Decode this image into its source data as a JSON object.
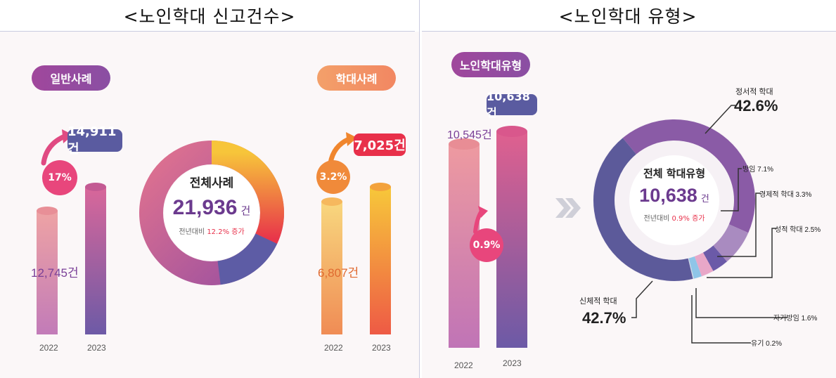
{
  "left_header": "<노인학대 신고건수>",
  "right_header": "<노인학대 유형>",
  "general": {
    "pill": "일반사례",
    "growth": "17%",
    "bar_2022_label": "12,745건",
    "bar_2023_label": "14,911건",
    "year_2022": "2022",
    "year_2023": "2023"
  },
  "abuse": {
    "pill": "학대사례",
    "growth": "3.2%",
    "bar_2022_label": "6,807건",
    "bar_2023_label": "7,025건",
    "year_2022": "2022",
    "year_2023": "2023"
  },
  "total": {
    "title": "전체사례",
    "value": "21,936",
    "unit": "건",
    "yoy_prefix": "전년대비",
    "yoy_value": "12.2% 증가"
  },
  "types_bars": {
    "pill": "노인학대유형",
    "growth": "0.9%",
    "bar_2022_label": "10,545건",
    "bar_2023_label": "10,638건",
    "year_2022": "2022",
    "year_2023": "2023"
  },
  "types_donut": {
    "title": "전체 학대유형",
    "value": "10,638",
    "unit": "건",
    "yoy_prefix": "전년대비",
    "yoy_value": "0.9% 증가"
  },
  "types_labels": {
    "emotional": "정서적 학대",
    "emotional_pct": "42.6%",
    "neglect": "방임 7.1%",
    "economic": "경제적 학대 3.3%",
    "sexual": "성적 학대 2.5%",
    "self_neglect": "자기방임 1.6%",
    "abandon": "유기 0.2%",
    "physical": "신체적 학대",
    "physical_pct": "42.7%"
  },
  "chart_data": [
    {
      "type": "bar",
      "categories": [
        "2022",
        "2023"
      ],
      "series": [
        {
          "name": "일반사례",
          "values": [
            12745,
            14911
          ]
        }
      ]
    },
    {
      "type": "pie",
      "title": "전체사례",
      "total": 21936,
      "categories": [
        "일반사례",
        "학대사례"
      ],
      "values": [
        14911,
        7025
      ]
    },
    {
      "type": "bar",
      "categories": [
        "2022",
        "2023"
      ],
      "series": [
        {
          "name": "학대사례",
          "values": [
            6807,
            7025
          ]
        }
      ]
    },
    {
      "type": "bar",
      "categories": [
        "2022",
        "2023"
      ],
      "series": [
        {
          "name": "노인학대유형",
          "values": [
            10545,
            10638
          ]
        }
      ]
    },
    {
      "type": "pie",
      "title": "전체 학대유형",
      "total": 10638,
      "categories": [
        "정서적 학대",
        "방임",
        "경제적 학대",
        "성적 학대",
        "자기방임",
        "유기",
        "신체적 학대"
      ],
      "values": [
        42.6,
        7.1,
        3.3,
        2.5,
        1.6,
        0.2,
        42.7
      ]
    }
  ],
  "colors": {
    "purple": "#7a3f97",
    "pink": "#e8467c",
    "orange": "#f08a3a",
    "red": "#e8304a",
    "navy": "#5a5ba0"
  }
}
